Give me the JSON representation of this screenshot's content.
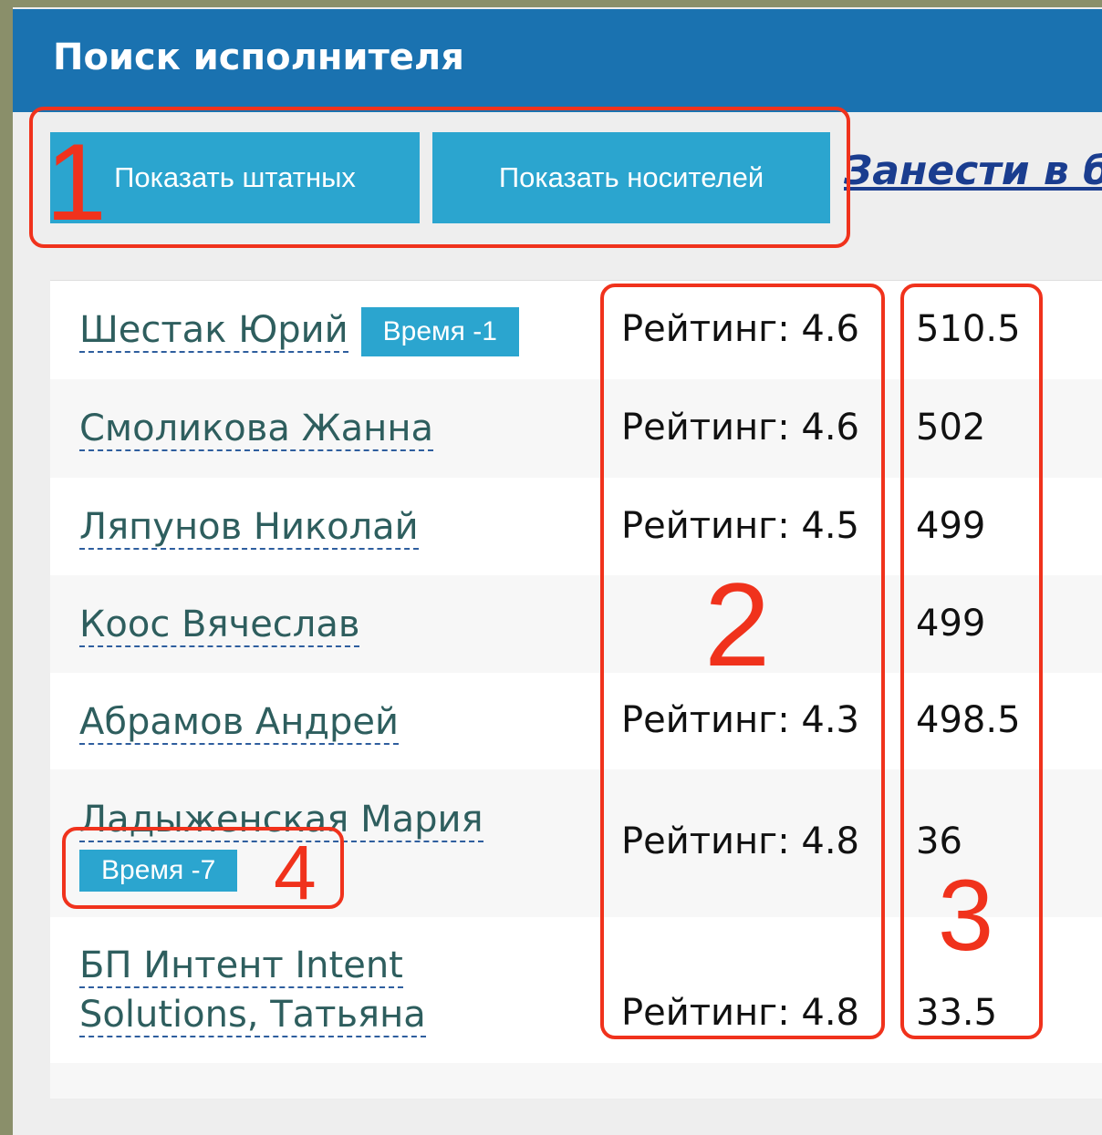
{
  "header": {
    "title": "Поиск исполнителя"
  },
  "toolbar": {
    "buttons": [
      "Показать штатных",
      "Показать носителей"
    ],
    "link": "Занести в ба"
  },
  "rows": [
    {
      "name": "Шестак Юрий",
      "badge": "Время -1",
      "rating": "Рейтинг: 4.6",
      "score": "510.5"
    },
    {
      "name": "Смоликова Жанна",
      "rating": "Рейтинг: 4.6",
      "score": "502"
    },
    {
      "name": "Ляпунов Николай",
      "rating": "Рейтинг: 4.5",
      "score": "499"
    },
    {
      "name": "Коос Вячеслав",
      "score": "499"
    },
    {
      "name": "Абрамов Андрей",
      "rating": "Рейтинг: 4.3",
      "score": "498.5"
    },
    {
      "name": "Ладыженская Мария",
      "badge": "Время -7",
      "rating": "Рейтинг: 4.8",
      "score": "36"
    },
    {
      "name": "БП Интент Intent Solutions, Татьяна",
      "rating": "Рейтинг: 4.8",
      "score": "33.5"
    }
  ],
  "annotations": [
    "1",
    "2",
    "3",
    "4"
  ]
}
